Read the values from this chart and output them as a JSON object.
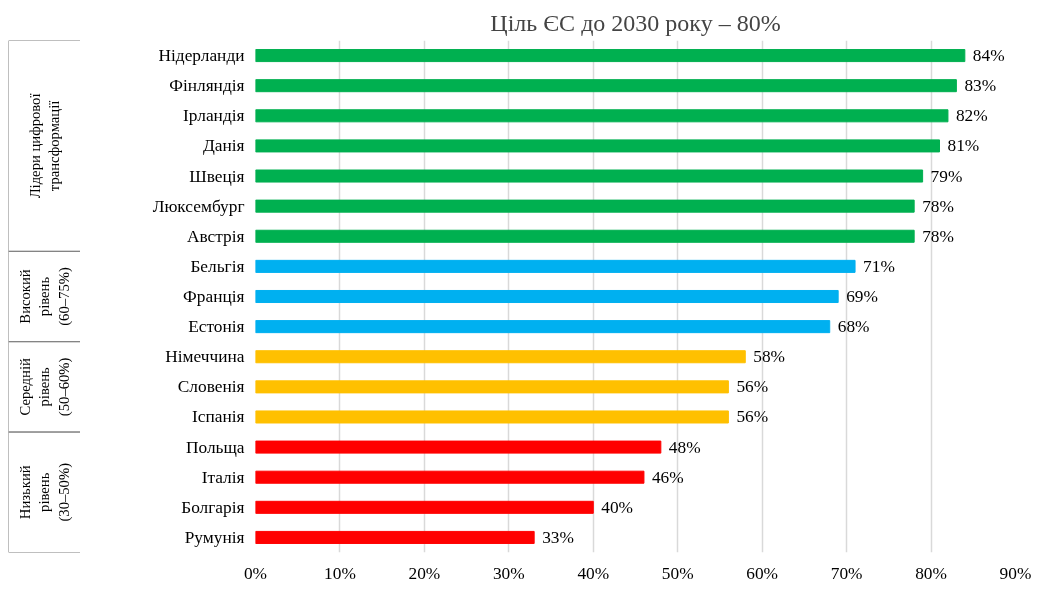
{
  "chart_data": {
    "type": "bar",
    "orientation": "horizontal",
    "title": "Ціль ЄС до 2030 року – 80%",
    "categories": [
      "Нідерланди",
      "Фінляндія",
      "Ірландія",
      "Данія",
      "Швеція",
      "Люксембург",
      "Австрія",
      "Бельгія",
      "Франція",
      "Естонія",
      "Німеччина",
      "Словенія",
      "Іспанія",
      "Польща",
      "Італія",
      "Болгарія",
      "Румунія"
    ],
    "values": [
      84,
      83,
      82,
      81,
      79,
      78,
      78,
      71,
      69,
      68,
      58,
      56,
      56,
      48,
      46,
      40,
      33
    ],
    "colors": [
      "#00b050",
      "#00b050",
      "#00b050",
      "#00b050",
      "#00b050",
      "#00b050",
      "#00b050",
      "#00b0f0",
      "#00b0f0",
      "#00b0f0",
      "#ffc000",
      "#ffc000",
      "#ffc000",
      "#ff0000",
      "#ff0000",
      "#ff0000",
      "#ff0000"
    ],
    "value_labels": [
      "84%",
      "83%",
      "82%",
      "81%",
      "79%",
      "78%",
      "78%",
      "71%",
      "69%",
      "68%",
      "58%",
      "56%",
      "56%",
      "48%",
      "46%",
      "40%",
      "33%"
    ],
    "xlim": [
      0,
      90
    ],
    "xticks": [
      {
        "value": 0,
        "label": "0%"
      },
      {
        "value": 10,
        "label": "10%"
      },
      {
        "value": 20,
        "label": "20%"
      },
      {
        "value": 30,
        "label": "30%"
      },
      {
        "value": 40,
        "label": "40%"
      },
      {
        "value": 50,
        "label": "50%"
      },
      {
        "value": 60,
        "label": "60%"
      },
      {
        "value": 70,
        "label": "70%"
      },
      {
        "value": 80,
        "label": "80%"
      },
      {
        "value": 90,
        "label": "90%"
      }
    ],
    "grid": "x",
    "annotations": [
      "Лідери цифрової трансформації",
      "Високий рівень (60–75%)",
      "Середній рівень (50–60%)",
      "Низький рівень (30–50%)"
    ]
  }
}
